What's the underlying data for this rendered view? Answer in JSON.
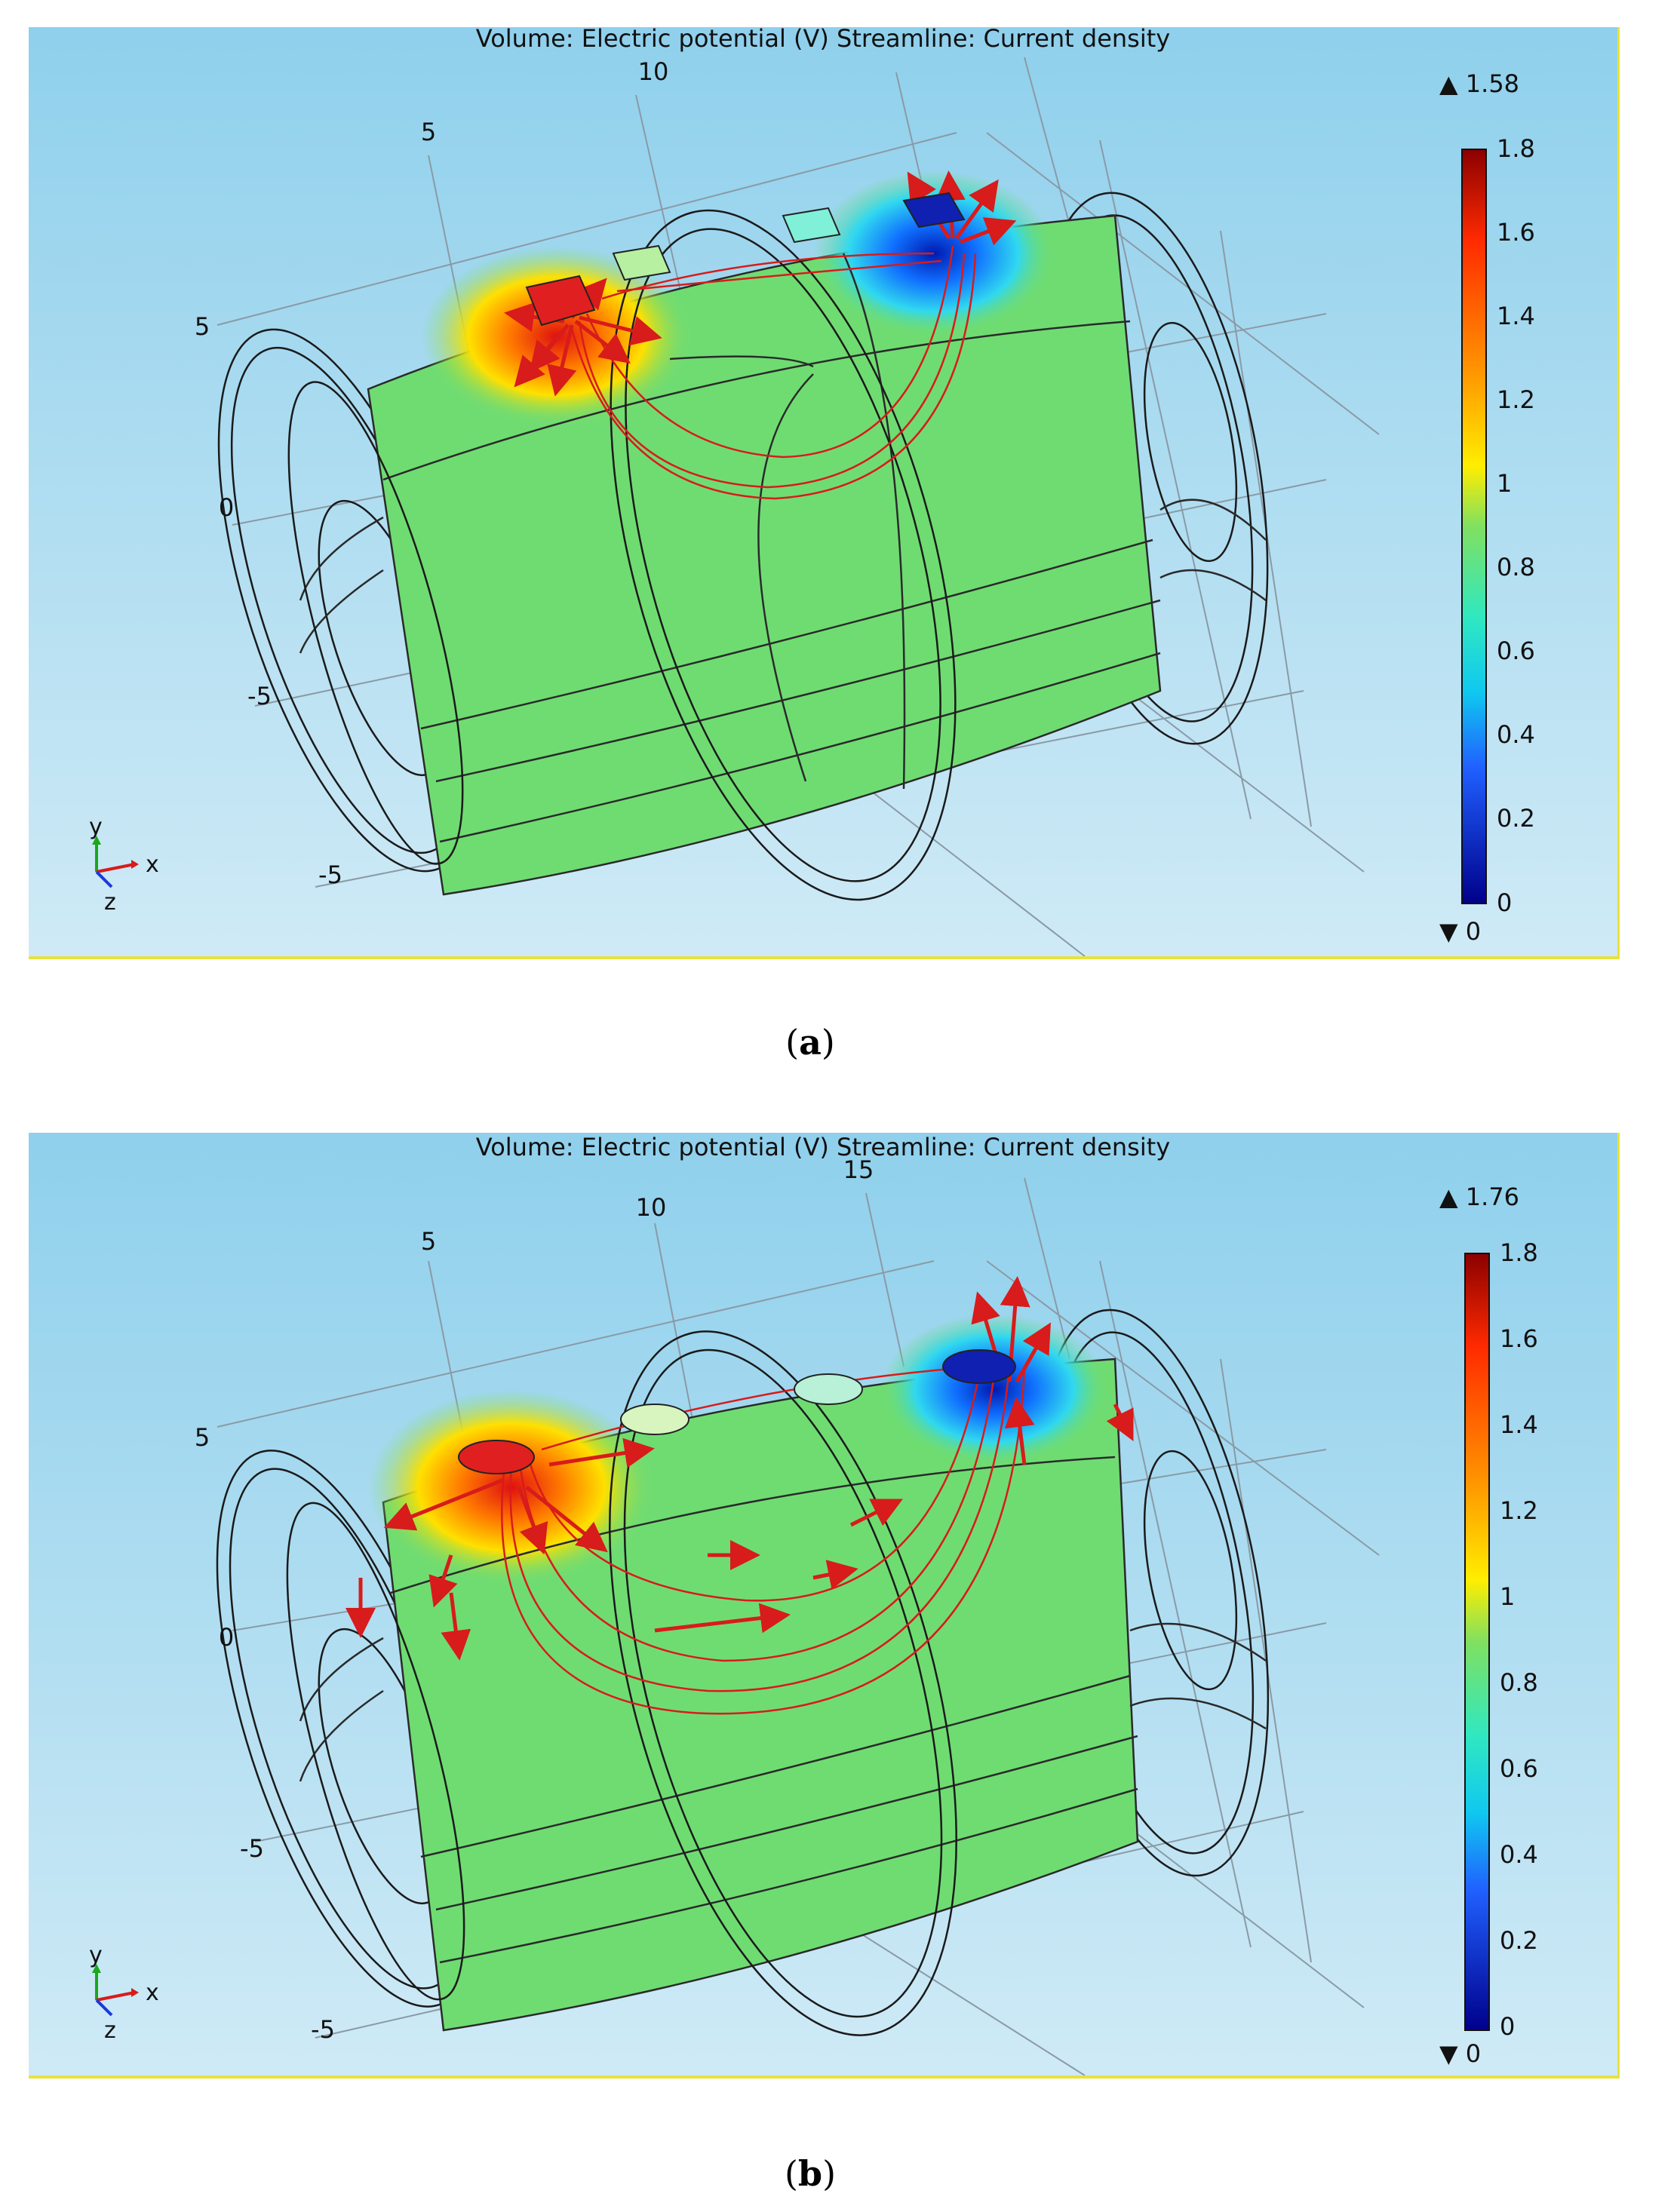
{
  "panels": [
    {
      "id": "a",
      "title": "Volume: Electric potential (V)  Streamline: Current density",
      "axis_ticks": {
        "top": [
          "5",
          "10"
        ],
        "left": [
          "5",
          "0",
          "-5",
          "-5"
        ]
      },
      "colorbar": {
        "max_label": "▲ 1.58",
        "min_label": "▼ 0",
        "ticks": [
          "1.8",
          "1.6",
          "1.4",
          "1.2",
          "1",
          "0.8",
          "0.6",
          "0.4",
          "0.2",
          "0"
        ]
      },
      "triad": {
        "y": "y",
        "x": "x",
        "z": "z"
      },
      "caption": {
        "open": "(",
        "letter": "a",
        "close": ")"
      }
    },
    {
      "id": "b",
      "title": "Volume: Electric potential (V)  Streamline: Current density",
      "axis_ticks": {
        "top": [
          "5",
          "10",
          "15"
        ],
        "left": [
          "5",
          "0",
          "-5",
          "-5"
        ]
      },
      "colorbar": {
        "max_label": "▲ 1.76",
        "min_label": "▼ 0",
        "ticks": [
          "1.8",
          "1.6",
          "1.4",
          "1.2",
          "1",
          "0.8",
          "0.6",
          "0.4",
          "0.2",
          "0"
        ]
      },
      "triad": {
        "y": "y",
        "x": "x",
        "z": "z"
      },
      "caption": {
        "open": "(",
        "letter": "b",
        "close": ")"
      }
    }
  ],
  "colors": {
    "background_top": "#8fd0ec",
    "background_bottom": "#cfeaf6",
    "domain_fill": "#6fdc72",
    "streamline": "#d81b1b",
    "frame": "#e8e23a"
  }
}
